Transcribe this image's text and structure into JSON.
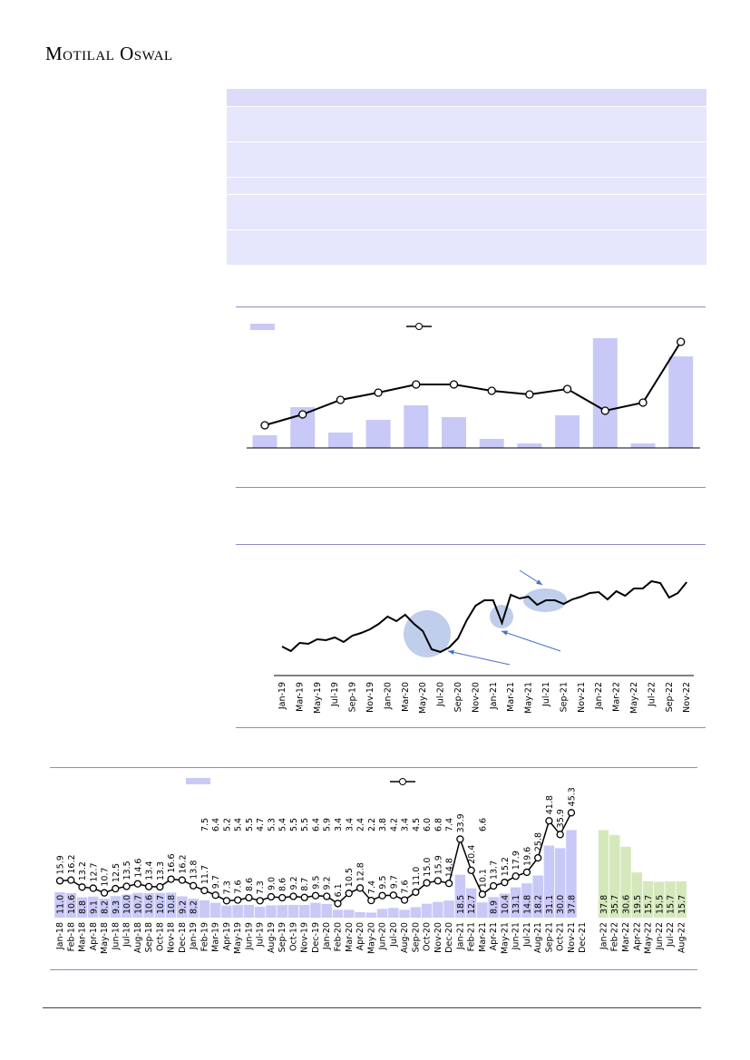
{
  "header": {
    "logo": "Motilal Oswal"
  },
  "chart_data": [
    {
      "type": "bar-line",
      "ylim": [
        0,
        154
      ],
      "series": [
        {
          "type": "bar",
          "color": "#c9c9f7",
          "values": [
            14,
            45,
            17,
            31,
            47,
            34,
            10,
            5,
            36,
            121,
            5,
            101
          ]
        },
        {
          "type": "line",
          "color": "#000000",
          "values": [
            25,
            37,
            53,
            61,
            70,
            70,
            63,
            59,
            65,
            41,
            50,
            117
          ]
        }
      ]
    },
    {
      "type": "line",
      "ylim": [
        0,
        145
      ],
      "color": "#000000",
      "categories": [
        "Jan-19",
        null,
        "Mar-19",
        null,
        "May-19",
        null,
        "Jul-19",
        null,
        "Sep-19",
        null,
        "Nov-19",
        null,
        "Jan-20",
        null,
        "Mar-20",
        null,
        "May-20",
        null,
        "Jul-20",
        null,
        "Sep-20",
        null,
        "Nov-20",
        null,
        "Jan-21",
        null,
        "Mar-21",
        null,
        "May-21",
        null,
        "Jul-21",
        null,
        "Sep-21",
        null,
        "Nov-21",
        null,
        "Jan-22",
        null,
        "Mar-22",
        null,
        "May-22",
        null,
        "Jul-22",
        null,
        "Sep-22",
        null,
        "Nov-22"
      ],
      "values": [
        32,
        27,
        36,
        35,
        40,
        39,
        42,
        37,
        44,
        47,
        51,
        57,
        65,
        60,
        67,
        57,
        49,
        29,
        26,
        31,
        41,
        61,
        77,
        83,
        83,
        58,
        89,
        85,
        87,
        78,
        83,
        83,
        79,
        84,
        87,
        91,
        92,
        84,
        93,
        88,
        96,
        96,
        104,
        102,
        86,
        91,
        103
      ]
    },
    {
      "type": "bar-line",
      "ylim": [
        0,
        65
      ],
      "categories": [
        "Jan-18",
        "Feb-18",
        "Mar-18",
        "Apr-18",
        "May-18",
        "Jun-18",
        "Jul-18",
        "Aug-18",
        "Sep-18",
        "Oct-18",
        "Nov-18",
        "Dec-18",
        "Jan-19",
        "Feb-19",
        "Mar-19",
        "Apr-19",
        "May-19",
        "Jun-19",
        "Jul-19",
        "Aug-19",
        "Sep-19",
        "Oct-19",
        "Nov-19",
        "Dec-19",
        "Jan-20",
        "Feb-20",
        "Mar-20",
        "Apr-20",
        "May-20",
        "Jun-20",
        "Jul-20",
        "Aug-20",
        "Sep-20",
        "Oct-20",
        "Nov-20",
        "Dec-20",
        "Jan-21",
        "Feb-21",
        "Mar-21",
        "Apr-21",
        "May-21",
        "Jun-21",
        "Jul-21",
        "Aug-21",
        "Sep-21",
        "Oct-21",
        "Nov-21",
        "Dec-21",
        "Jan-22",
        "Feb-22",
        "Mar-22",
        "Apr-22",
        "May-22",
        "Jun-22",
        "Jul-22",
        "Aug-22"
      ],
      "series": [
        {
          "type": "bar",
          "color": "#c9c9f7",
          "values": [
            11.0,
            10.6,
            8.8,
            9.1,
            8.2,
            9.3,
            10.0,
            10.7,
            10.6,
            10.7,
            10.8,
            9.2,
            8.2,
            7.5,
            6.4,
            5.2,
            5.4,
            5.5,
            4.7,
            5.3,
            5.4,
            5.5,
            5.5,
            6.4,
            5.9,
            3.4,
            3.4,
            2.4,
            2.2,
            3.8,
            4.2,
            3.4,
            4.5,
            6.0,
            6.8,
            7.4,
            18.5,
            12.7,
            6.6,
            8.9,
            10.4,
            13.1,
            14.8,
            18.2,
            31.1,
            30.0,
            37.8,
            null,
            null,
            null,
            null,
            null,
            null,
            null,
            null,
            null
          ],
          "value_labels": [
            "11.0",
            "10.6",
            "8.8",
            "9.1",
            "8.2",
            "9.3",
            "10.0",
            "10.7",
            "10.6",
            "10.7",
            "10.8",
            "9.2",
            "8.2",
            "7.5",
            "6.4",
            "5.2",
            "5.4",
            "5.5",
            "4.7",
            "5.3",
            "5.4",
            "5.5",
            "5.5",
            "6.4",
            "5.9",
            "3.4",
            "3.4",
            "2.4",
            "2.2",
            "3.8",
            "4.2",
            "3.4",
            "4.5",
            "6.0",
            "6.8",
            "7.4",
            "18.5",
            "12.7",
            "6.6",
            "8.9",
            "10.4",
            "13.1",
            "14.8",
            "18.2",
            "31.1",
            "30.0",
            "37.8",
            null,
            null,
            null,
            null,
            null,
            null,
            null,
            null,
            null
          ]
        },
        {
          "type": "bar",
          "color": "#d5e8bc",
          "values": [
            null,
            null,
            null,
            null,
            null,
            null,
            null,
            null,
            null,
            null,
            null,
            null,
            null,
            null,
            null,
            null,
            null,
            null,
            null,
            null,
            null,
            null,
            null,
            null,
            null,
            null,
            null,
            null,
            null,
            null,
            null,
            null,
            null,
            null,
            null,
            null,
            null,
            null,
            null,
            null,
            null,
            null,
            null,
            null,
            null,
            null,
            null,
            null,
            37.8,
            35.7,
            30.6,
            19.5,
            15.7,
            15.5,
            15.7,
            15.7
          ],
          "value_labels": [
            null,
            null,
            null,
            null,
            null,
            null,
            null,
            null,
            null,
            null,
            null,
            null,
            null,
            null,
            null,
            null,
            null,
            null,
            null,
            null,
            null,
            null,
            null,
            null,
            null,
            null,
            null,
            null,
            null,
            null,
            null,
            null,
            null,
            null,
            null,
            null,
            null,
            null,
            null,
            null,
            null,
            null,
            null,
            null,
            null,
            null,
            null,
            null,
            "37.8",
            "35.7",
            "30.6",
            "19.5",
            "15.7",
            "15.5",
            "15.7",
            "15.7"
          ]
        },
        {
          "type": "line",
          "color": "#000000",
          "values": [
            15.9,
            16.2,
            13.2,
            12.7,
            10.7,
            12.5,
            13.5,
            14.6,
            13.4,
            13.3,
            16.6,
            16.2,
            13.8,
            11.7,
            9.7,
            7.3,
            7.6,
            8.6,
            7.3,
            9.0,
            8.6,
            9.2,
            8.7,
            9.5,
            9.2,
            6.1,
            10.5,
            12.8,
            7.4,
            9.5,
            9.7,
            7.6,
            11.0,
            15.0,
            15.9,
            14.8,
            33.9,
            20.4,
            10.1,
            13.7,
            15.2,
            17.9,
            19.6,
            25.8,
            41.8,
            35.9,
            45.3,
            null,
            null,
            null,
            null,
            null,
            null,
            null,
            null,
            null
          ],
          "value_labels": [
            "15.9",
            "16.2",
            "13.2",
            "12.7",
            "10.7",
            "12.5",
            "13.5",
            "14.6",
            "13.4",
            "13.3",
            "16.6",
            "16.2",
            "13.8",
            "11.7",
            "9.7",
            "7.3",
            "7.6",
            "8.6",
            "7.3",
            "9.0",
            "8.6",
            "9.2",
            "8.7",
            "9.5",
            "9.2",
            "6.1",
            "10.5",
            "12.8",
            "7.4",
            "9.5",
            "9.7",
            "7.6",
            "11.0",
            "15.0",
            "15.9",
            "14.8",
            "33.9",
            "20.4",
            "10.1",
            "13.7",
            "15.2",
            "17.9",
            "19.6",
            "25.8",
            "41.8",
            "35.9",
            "45.3",
            null,
            null,
            null,
            null,
            null,
            null,
            null,
            null,
            null
          ]
        }
      ]
    }
  ]
}
